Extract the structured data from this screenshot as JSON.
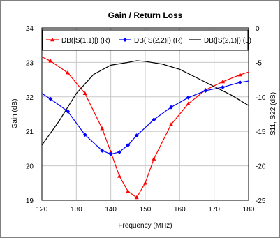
{
  "chart_data": {
    "type": "line",
    "title": "Gain / Return Loss",
    "xlabel": "Frequency (MHz)",
    "ylabel_left": "Gain (dB)",
    "ylabel_right": "S11, S22 (dB)",
    "xlim": [
      120,
      180
    ],
    "ylim_left": [
      19,
      24
    ],
    "ylim_right": [
      -25,
      0
    ],
    "x_ticks": [
      "120",
      "130",
      "140",
      "150",
      "160",
      "170",
      "180"
    ],
    "y_left_ticks": [
      "19",
      "20",
      "21",
      "22",
      "23",
      "24"
    ],
    "y_right_ticks": [
      "-25",
      "-20",
      "-15",
      "-10",
      "-5",
      "0"
    ],
    "grid": true,
    "legend_position": "top",
    "series": [
      {
        "name": "DB(|S(1,1)|) (R)",
        "axis": "right",
        "color": "#ff0000",
        "marker": "triangle",
        "x": [
          120,
          122.5,
          127.5,
          132.5,
          137.5,
          140,
          142.5,
          145,
          147.5,
          150,
          152.5,
          157.5,
          162.5,
          167.5,
          172.5,
          177.5,
          180
        ],
        "values": [
          -4.2,
          -4.8,
          -6.5,
          -9.5,
          -14.6,
          -18.0,
          -21.5,
          -23.7,
          -24.6,
          -22.5,
          -19.0,
          -14.0,
          -11.0,
          -9.0,
          -7.8,
          -6.8,
          -6.4
        ]
      },
      {
        "name": "DB(|S(2,2)|) (R)",
        "axis": "right",
        "color": "#0000ff",
        "marker": "diamond",
        "x": [
          120,
          122.5,
          127.5,
          132.5,
          137.5,
          140,
          142.5,
          145,
          147.5,
          152.5,
          157.5,
          162.5,
          167.5,
          172.5,
          177.5,
          180
        ],
        "values": [
          -9.5,
          -10.3,
          -12.1,
          -15.5,
          -17.8,
          -18.3,
          -18.0,
          -17.0,
          -15.6,
          -13.3,
          -11.5,
          -10.1,
          -9.1,
          -8.6,
          -7.9,
          -7.7
        ]
      },
      {
        "name": "DB(|S(2,1)|) (L)",
        "axis": "left",
        "color": "#000000",
        "marker": "none",
        "x": [
          120,
          125,
          130,
          135,
          140,
          145,
          147.5,
          150,
          155,
          160,
          165,
          170,
          175,
          180
        ],
        "values": [
          20.6,
          21.3,
          22.1,
          22.65,
          22.92,
          23.0,
          23.05,
          23.03,
          22.95,
          22.8,
          22.55,
          22.3,
          22.05,
          21.75
        ]
      }
    ]
  }
}
